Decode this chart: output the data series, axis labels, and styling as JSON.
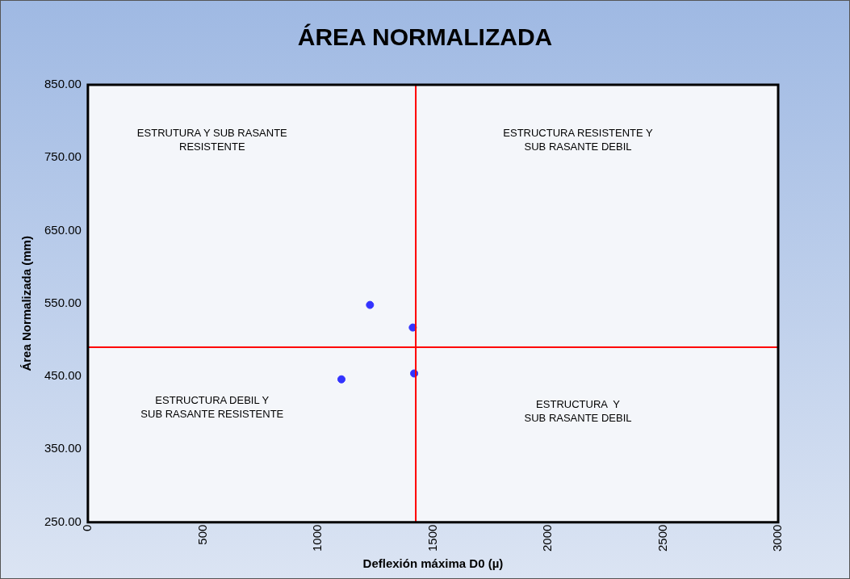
{
  "chart_data": {
    "type": "scatter",
    "title": "ÁREA NORMALIZADA",
    "xlabel": "Deflexión máxima D0 (µ)",
    "ylabel": "Área Normalizada (mm)",
    "x": [
      1226,
      1412,
      1418,
      1102
    ],
    "series": [
      {
        "color": "#3333ff",
        "values": [
          548,
          517,
          454,
          446
        ]
      }
    ],
    "xlim": [
      0,
      3000
    ],
    "xticks": [
      0,
      500,
      1000,
      1500,
      2000,
      2500,
      3000
    ],
    "ylim": [
      250,
      850
    ],
    "yticks": [
      {
        "value": 250,
        "label": "250.00"
      },
      {
        "value": 350,
        "label": "350.00"
      },
      {
        "value": 450,
        "label": "450.00"
      },
      {
        "value": 550,
        "label": "550.00"
      },
      {
        "value": 650,
        "label": "650.00"
      },
      {
        "value": 750,
        "label": "750.00"
      },
      {
        "value": 850,
        "label": "850.00"
      }
    ],
    "ref_lines": [
      {
        "axis": "x",
        "value": 1425,
        "color": "#ff0000"
      },
      {
        "axis": "y",
        "value": 490,
        "color": "#ff0000"
      }
    ],
    "annotations": [
      "ESTRUTURA Y SUB RASANTE\nRESISTENTE",
      "ESTRUCTURA RESISTENTE Y\nSUB RASANTE DEBIL",
      "ESTRUCTURA DEBIL Y\nSUB RASANTE RESISTENTE",
      "ESTRUCTURA  Y\nSUB RASANTE DEBIL"
    ],
    "grid": false,
    "legend": false,
    "marker": "circle"
  }
}
